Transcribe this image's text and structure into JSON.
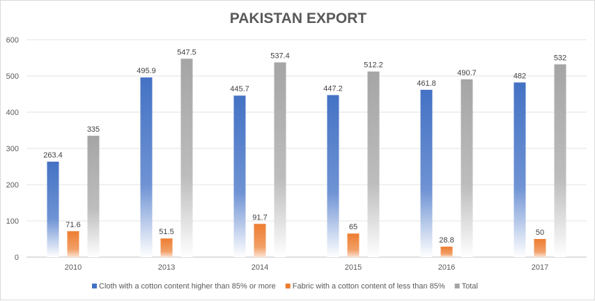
{
  "chart_data": {
    "type": "bar",
    "title": "PAKISTAN EXPORT",
    "xlabel": "",
    "ylabel": "",
    "ylim": [
      0,
      600
    ],
    "yticks": [
      0,
      100,
      200,
      300,
      400,
      500,
      600
    ],
    "grid": true,
    "legend_position": "bottom",
    "categories": [
      "2010",
      "2013",
      "2014",
      "2015",
      "2016",
      "2017"
    ],
    "series": [
      {
        "name": "Cloth with a cotton content higher than 85% or more",
        "color": "#4472c4",
        "values": [
          263.4,
          495.9,
          445.7,
          447.2,
          461.8,
          482
        ]
      },
      {
        "name": "Fabric with a cotton content of less than 85%",
        "color": "#ed7d31",
        "values": [
          71.6,
          51.5,
          91.7,
          65,
          28.8,
          50
        ]
      },
      {
        "name": "Total",
        "color": "#a5a5a5",
        "values": [
          335,
          547.5,
          537.4,
          512.2,
          490.7,
          532
        ]
      }
    ]
  }
}
